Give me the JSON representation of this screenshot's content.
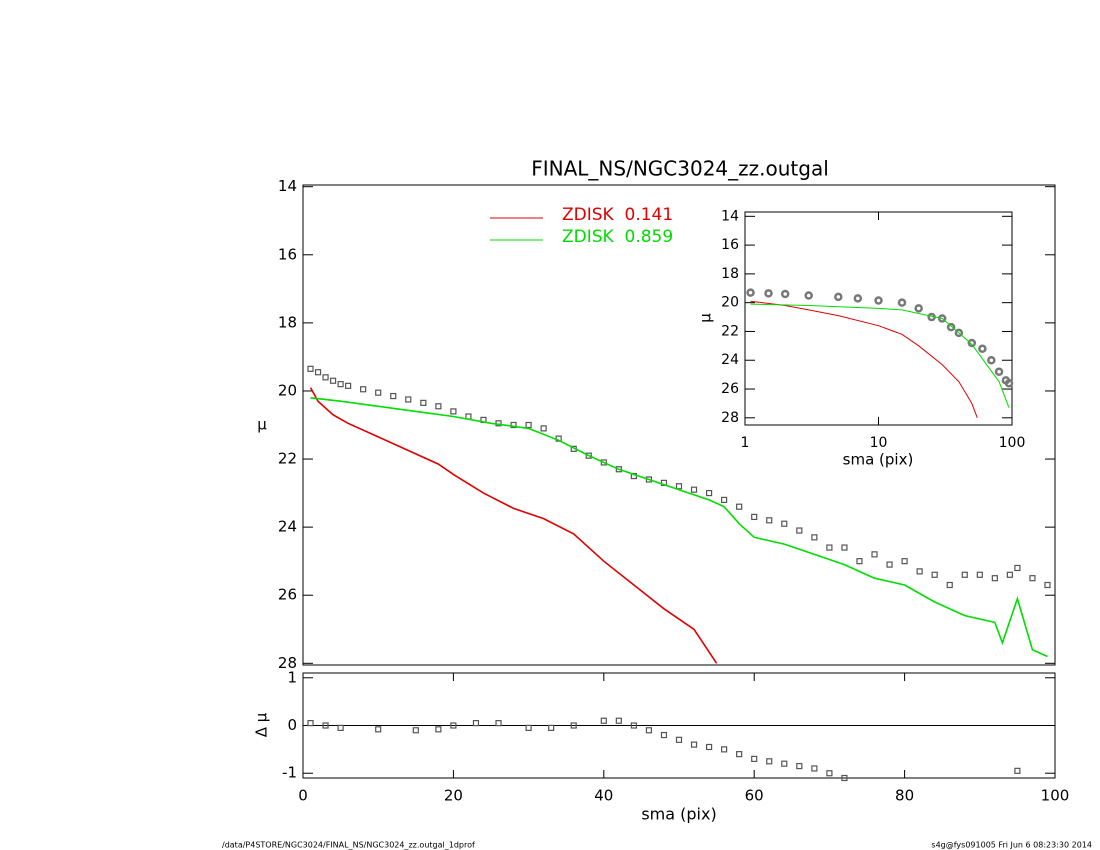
{
  "chart_data": [
    {
      "type": "line",
      "title": "FINAL_NS/NGC3024_zz.outgal",
      "ylabel": "μ",
      "xlim": [
        0,
        100
      ],
      "ylim": [
        13.95,
        28.05
      ],
      "y_inverted": true,
      "yticks": [
        14,
        16,
        18,
        20,
        22,
        24,
        26,
        28
      ],
      "series": [
        {
          "kind": "points",
          "color": "#555555",
          "x": [
            1,
            2,
            3,
            4,
            5,
            6,
            8,
            10,
            12,
            14,
            16,
            18,
            20,
            22,
            24,
            26,
            28,
            30,
            32,
            34,
            36,
            38,
            40,
            42,
            44,
            46,
            48,
            50,
            52,
            54,
            56,
            58,
            60,
            62,
            64,
            66,
            68,
            70,
            72,
            74,
            76,
            78,
            80,
            82,
            84,
            86,
            88,
            90,
            92,
            94,
            95,
            97,
            99
          ],
          "values": [
            19.35,
            19.45,
            19.6,
            19.7,
            19.8,
            19.85,
            19.95,
            20.05,
            20.15,
            20.25,
            20.35,
            20.45,
            20.6,
            20.75,
            20.85,
            20.95,
            21.0,
            21.0,
            21.1,
            21.4,
            21.7,
            21.9,
            22.1,
            22.3,
            22.5,
            22.6,
            22.7,
            22.8,
            22.9,
            23.0,
            23.2,
            23.4,
            23.7,
            23.8,
            23.9,
            24.1,
            24.3,
            24.6,
            24.6,
            25.0,
            24.8,
            25.1,
            25.0,
            25.3,
            25.4,
            25.7,
            25.4,
            25.4,
            25.5,
            25.4,
            25.2,
            25.5,
            25.7
          ]
        },
        {
          "kind": "line",
          "name": "ZDISK  0.141",
          "color": "#e00000",
          "x": [
            1,
            2,
            4,
            6,
            10,
            14,
            18,
            20,
            24,
            28,
            32,
            36,
            40,
            44,
            48,
            52,
            55
          ],
          "values": [
            19.9,
            20.3,
            20.7,
            20.95,
            21.35,
            21.75,
            22.15,
            22.45,
            23.0,
            23.45,
            23.75,
            24.2,
            25.0,
            25.7,
            26.4,
            27.0,
            28.0
          ]
        },
        {
          "kind": "line",
          "name": "ZDISK  0.859",
          "color": "#00dd00",
          "x": [
            1,
            5,
            10,
            15,
            20,
            25,
            30,
            34,
            38,
            42,
            46,
            50,
            54,
            56,
            58,
            60,
            64,
            68,
            72,
            76,
            80,
            84,
            88,
            92,
            93,
            95,
            97,
            99
          ],
          "values": [
            20.2,
            20.3,
            20.45,
            20.6,
            20.75,
            20.95,
            21.1,
            21.45,
            21.9,
            22.3,
            22.6,
            22.9,
            23.2,
            23.4,
            23.9,
            24.3,
            24.5,
            24.8,
            25.1,
            25.5,
            25.7,
            26.2,
            26.6,
            26.8,
            27.4,
            26.1,
            27.6,
            27.8
          ]
        }
      ]
    },
    {
      "type": "scatter",
      "xlabel": "sma (pix)",
      "ylabel": "Δ μ",
      "xlim": [
        0,
        100
      ],
      "ylim": [
        -1.1,
        1.1
      ],
      "xticks": [
        0,
        20,
        40,
        60,
        80,
        100
      ],
      "yticks": [
        -1,
        0,
        1
      ],
      "series": [
        {
          "kind": "points",
          "color": "#555555",
          "x": [
            1,
            3,
            5,
            10,
            15,
            18,
            20,
            23,
            26,
            30,
            33,
            36,
            40,
            42,
            44,
            46,
            48,
            50,
            52,
            54,
            56,
            58,
            60,
            62,
            64,
            66,
            68,
            70,
            72,
            95
          ],
          "values": [
            0.05,
            0.0,
            -0.05,
            -0.08,
            -0.1,
            -0.08,
            0.0,
            0.05,
            0.05,
            -0.05,
            -0.05,
            0.0,
            0.1,
            0.1,
            0.0,
            -0.1,
            -0.2,
            -0.3,
            -0.4,
            -0.45,
            -0.5,
            -0.6,
            -0.7,
            -0.75,
            -0.8,
            -0.85,
            -0.9,
            -1.0,
            -1.1,
            -0.95
          ]
        }
      ]
    },
    {
      "type": "line",
      "xlabel": "sma (pix)",
      "ylabel": "μ",
      "xlim": [
        1,
        100
      ],
      "xlog": true,
      "ylim": [
        13.7,
        28.5
      ],
      "y_inverted": true,
      "xticks": [
        1,
        10,
        100
      ],
      "yticks": [
        14,
        16,
        18,
        20,
        22,
        24,
        26,
        28
      ],
      "series": [
        {
          "kind": "circles",
          "color": "#777777",
          "x": [
            1.1,
            1.5,
            2,
            3,
            5,
            7,
            10,
            15,
            20,
            25,
            30,
            35,
            40,
            50,
            60,
            70,
            80,
            90,
            95
          ],
          "values": [
            19.3,
            19.35,
            19.4,
            19.5,
            19.6,
            19.7,
            19.85,
            20.0,
            20.4,
            21.0,
            21.1,
            21.7,
            22.1,
            22.8,
            23.2,
            24.0,
            24.8,
            25.4,
            25.6
          ]
        },
        {
          "kind": "line",
          "color": "#e00000",
          "x": [
            1.1,
            2,
            3,
            5,
            10,
            15,
            20,
            30,
            40,
            50,
            55
          ],
          "values": [
            19.9,
            20.2,
            20.5,
            20.9,
            21.6,
            22.2,
            23.0,
            24.3,
            25.5,
            27.0,
            28.0
          ]
        },
        {
          "kind": "line",
          "color": "#00dd00",
          "x": [
            1.1,
            3,
            10,
            15,
            20,
            30,
            40,
            50,
            60,
            80,
            95
          ],
          "values": [
            20.1,
            20.2,
            20.4,
            20.5,
            20.75,
            21.1,
            22.1,
            22.9,
            23.9,
            25.5,
            27.3
          ]
        }
      ]
    }
  ],
  "footer": {
    "left": "/data/P4STORE/NGC3024/FINAL_NS/NGC3024_zz.outgal_1dprof",
    "right": "s4g@fys091005  Fri Jun  6 08:23:30 2014"
  }
}
